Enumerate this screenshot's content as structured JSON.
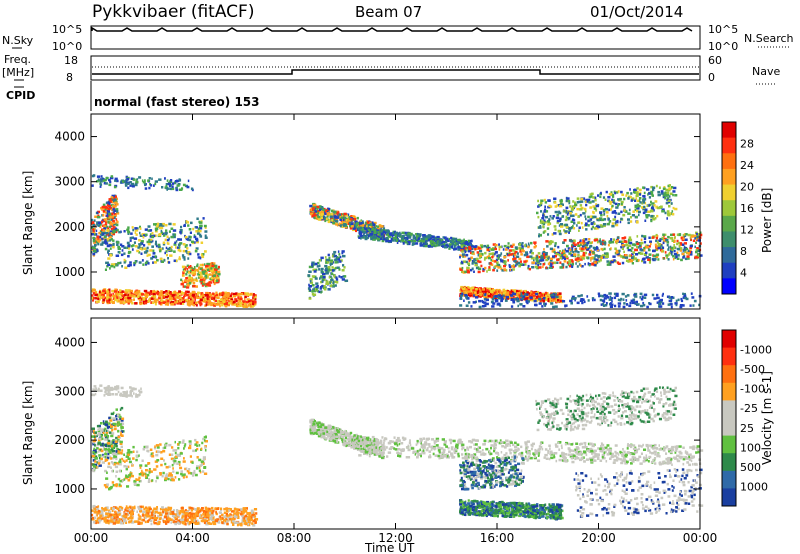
{
  "header": {
    "radar": "Pykkvibaer (fitACF)",
    "beam": "Beam 07",
    "date": "01/Oct/2014"
  },
  "panels": {
    "nsky_label": "N.Sky",
    "nsearch_label": "N.Search",
    "nsky_ticks": [
      "10^5",
      "10^0"
    ],
    "nsearch_ticks": [
      "10^5",
      "10^0"
    ],
    "freq_label": "Freq.",
    "freq_unit": "[MHz]",
    "freq_ticks": [
      "18",
      "8"
    ],
    "nave_label": "Nave",
    "nave_ticks": [
      "60",
      "0"
    ],
    "cpid_label": "CPID",
    "cpid_text": "normal (fast stereo) 153"
  },
  "chart_data": [
    {
      "type": "line",
      "title": "N.Sky / N.Search",
      "x_range_hours": [
        0,
        24
      ],
      "y_scale": "log",
      "y_ticks": [
        "10^0",
        "10^5"
      ],
      "notes": "Noise level trace mostly flat near top with sparse spikes"
    },
    {
      "type": "line",
      "title": "Freq. / Nave",
      "x_range_hours": [
        0,
        24
      ],
      "freq_ylim": [
        8,
        18
      ],
      "nave_ylim": [
        0,
        60
      ],
      "series": [
        {
          "name": "Freq.",
          "x": [
            "00:00",
            "08:00",
            "08:00",
            "18:00",
            "18:00",
            "24:00"
          ],
          "values": [
            9.5,
            9.5,
            11,
            11,
            9.5,
            9.5
          ]
        }
      ]
    },
    {
      "type": "heatmap",
      "ylabel": "Slant Range [km]",
      "xlabel": "Time UT",
      "ylim": [
        180,
        4500
      ],
      "xlim": [
        "00:00",
        "24:00"
      ],
      "x_ticks": [
        "00:00",
        "04:00",
        "08:00",
        "12:00",
        "16:00",
        "20:00",
        "00:00"
      ],
      "y_ticks": [
        1000,
        2000,
        3000,
        4000
      ],
      "colorbar_label": "Power [dB]",
      "colorbar_ticks": [
        4,
        8,
        12,
        16,
        20,
        24,
        28
      ],
      "colorbar_colors": [
        "#0000ff",
        "#1f3fc0",
        "#2f6a9a",
        "#3e8e6c",
        "#5aa84a",
        "#9ec83a",
        "#f0d030",
        "#ffa020",
        "#ff7010",
        "#ff3010",
        "#e00000"
      ]
    },
    {
      "type": "heatmap",
      "ylabel": "Slant Range [km]",
      "xlabel": "Time UT",
      "ylim": [
        180,
        4500
      ],
      "xlim": [
        "00:00",
        "24:00"
      ],
      "x_ticks": [
        "00:00",
        "04:00",
        "08:00",
        "12:00",
        "16:00",
        "20:00",
        "00:00"
      ],
      "y_ticks": [
        1000,
        2000,
        3000,
        4000
      ],
      "colorbar_label": "Velocity [m s-1]",
      "colorbar_ticks": [
        1000,
        500,
        100,
        25,
        -25,
        -100,
        -500,
        -1000
      ],
      "colorbar_colors": [
        "#1a3fa0",
        "#2f6aa8",
        "#2e8a4a",
        "#60c040",
        "#c8c8c0",
        "#c8c8c0",
        "#ffa020",
        "#ff7010",
        "#ff3010",
        "#e00000"
      ]
    }
  ],
  "xlabel": "Time UT"
}
